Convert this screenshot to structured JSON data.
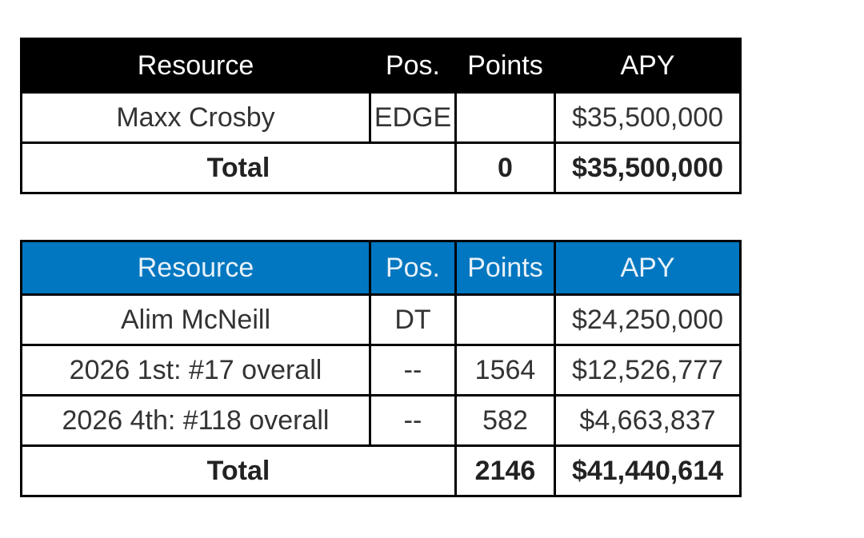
{
  "headers": {
    "resource": "Resource",
    "pos": "Pos.",
    "points": "Points",
    "apy": "APY"
  },
  "colors": {
    "table_a_header": "#000000",
    "table_b_header": "#0077c0"
  },
  "table_a": {
    "rows": [
      {
        "resource": "Maxx Crosby",
        "pos": "EDGE",
        "points": "",
        "apy": "$35,500,000"
      }
    ],
    "total": {
      "label": "Total",
      "points": "0",
      "apy": "$35,500,000"
    }
  },
  "table_b": {
    "rows": [
      {
        "resource": "Alim McNeill",
        "pos": "DT",
        "points": "",
        "apy": "$24,250,000"
      },
      {
        "resource": "2026 1st: #17 overall",
        "pos": "--",
        "points": "1564",
        "apy": "$12,526,777"
      },
      {
        "resource": "2026 4th: #118 overall",
        "pos": "--",
        "points": "582",
        "apy": "$4,663,837"
      }
    ],
    "total": {
      "label": "Total",
      "points": "2146",
      "apy": "$41,440,614"
    }
  }
}
